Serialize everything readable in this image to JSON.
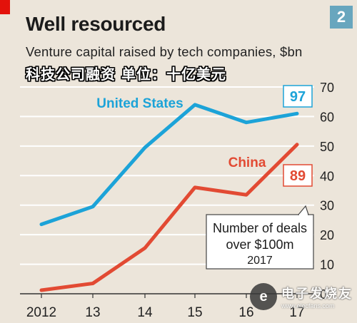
{
  "header": {
    "title": "Well resourced",
    "subtitle": "Venture capital raised by tech companies, $bn",
    "cn_overlay": "科技公司融资 单位：十亿美元",
    "chart_number": "2"
  },
  "colors": {
    "background": "#ece5da",
    "us": "#1ca3d8",
    "china": "#e24a33",
    "grid": "#ffffff",
    "accent": "#e3120b",
    "badge": "#68a6be"
  },
  "chart_data": {
    "type": "line",
    "x": [
      "2012",
      "13",
      "14",
      "15",
      "16",
      "17"
    ],
    "xlabels": [
      "2012",
      "13",
      "14",
      "15",
      "16",
      "17"
    ],
    "yticks": [
      0,
      10,
      20,
      30,
      40,
      50,
      60,
      70
    ],
    "ylim": [
      0,
      70
    ],
    "grid": true,
    "title": "Well resourced",
    "subtitle": "Venture capital raised by tech companies, $bn",
    "series": [
      {
        "name": "United States",
        "values": [
          23.5,
          29.5,
          49.5,
          64,
          58,
          61
        ],
        "color": "#1ca3d8",
        "deals_2017": "97"
      },
      {
        "name": "China",
        "values": [
          1.2,
          3.5,
          15.5,
          36,
          33.5,
          50.5
        ],
        "color": "#e24a33",
        "deals_2017": "89"
      }
    ],
    "annotation": {
      "line1": "Number of deals",
      "line2": "over $100m",
      "line3": "2017"
    }
  },
  "watermark": {
    "main": "电子发烧友",
    "sub": "www.elecfans.com"
  }
}
